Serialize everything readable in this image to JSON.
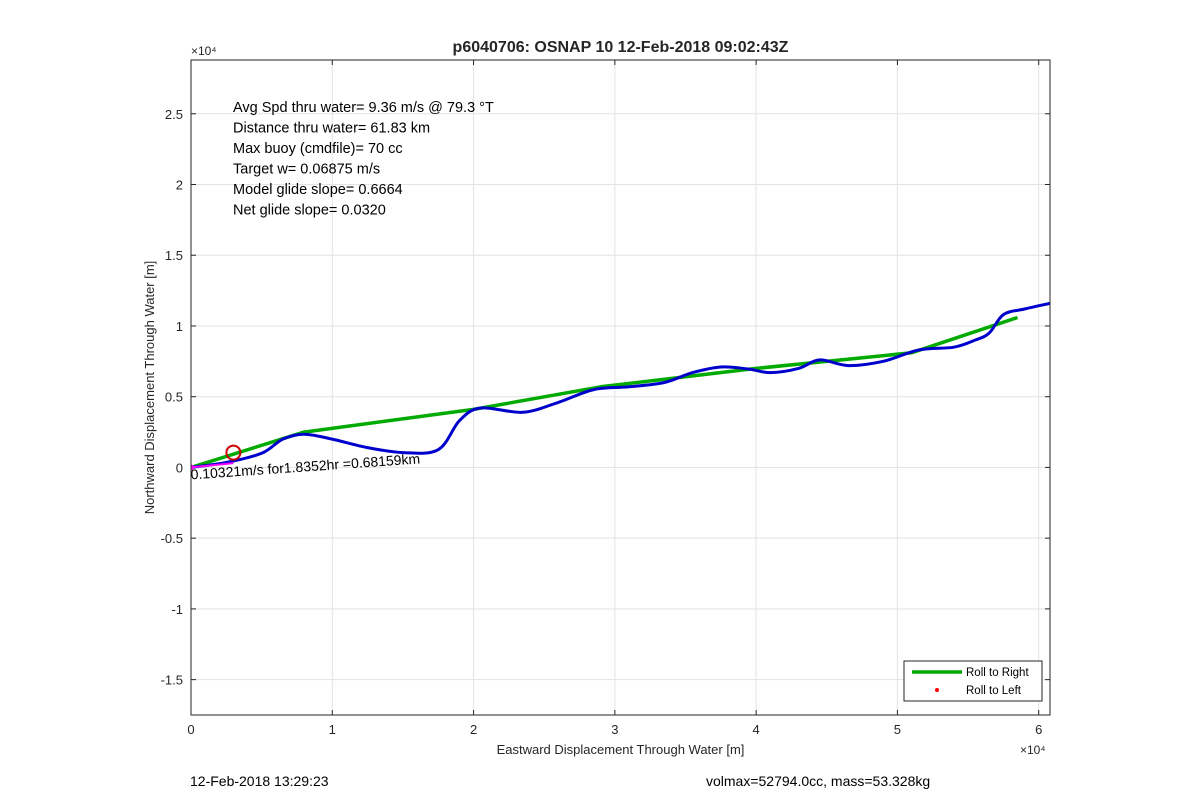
{
  "chart_data": {
    "type": "line",
    "title": "p6040706: OSNAP 10 12-Feb-2018 09:02:43Z",
    "xlabel": "Eastward Displacement Through Water [m]",
    "ylabel": "Northward Displacement Through Water [m]",
    "xlim": [
      0,
      60800
    ],
    "ylim": [
      -17500,
      28800
    ],
    "x_exponent_label": "×10⁴",
    "y_exponent_label": "×10⁴",
    "xticks": [
      0,
      10000,
      20000,
      30000,
      40000,
      50000,
      60000
    ],
    "xtick_labels": [
      "0",
      "1",
      "2",
      "3",
      "4",
      "5",
      "6"
    ],
    "yticks": [
      -15000,
      -10000,
      -5000,
      0,
      5000,
      10000,
      15000,
      20000,
      25000
    ],
    "ytick_labels": [
      "-1.5",
      "-1",
      "-0.5",
      "0",
      "0.5",
      "1",
      "1.5",
      "2",
      "2.5"
    ],
    "grid": true,
    "legend_position": "bottom-right",
    "legend": [
      {
        "label": "Roll to Right",
        "color": "#00aa00",
        "style": "line"
      },
      {
        "label": "Roll to Left",
        "color": "#ff0000",
        "style": "dot"
      }
    ],
    "annotations": [
      "Avg Spd thru water=  9.36 m/s @  79.3 °T",
      "Distance thru water= 61.83 km",
      "Max buoy (cmdfile)= 70 cc",
      "Target w= 0.06875 m/s",
      "Model glide slope= 0.6664",
      "Net glide slope= 0.0320"
    ],
    "current_label": "0.10321m/s for1.8352hr =0.68159km",
    "series": [
      {
        "name": "Roll to Right",
        "color": "#00aa00",
        "x": [
          0,
          8000,
          20000,
          29000,
          40000,
          51000,
          58500
        ],
        "y": [
          0,
          2500,
          4100,
          5700,
          7000,
          8100,
          10600
        ]
      },
      {
        "color": "#0000cc",
        "x": [
          0,
          2500,
          5000,
          6500,
          8000,
          10000,
          12500,
          15000,
          17500,
          19000,
          20500,
          23500,
          26000,
          28500,
          31000,
          33500,
          35500,
          37500,
          39500,
          41000,
          43000,
          44500,
          46500,
          49000,
          51500,
          54000,
          55500,
          56500,
          57500,
          59000,
          60800
        ],
        "y": [
          0,
          350,
          1000,
          2000,
          2350,
          2000,
          1400,
          1050,
          1250,
          3300,
          4200,
          3900,
          4600,
          5500,
          5700,
          6000,
          6700,
          7100,
          6950,
          6700,
          7000,
          7600,
          7200,
          7500,
          8300,
          8500,
          9000,
          9500,
          10800,
          11200,
          11600
        ]
      }
    ],
    "current_vector": {
      "color": "#ff00ff",
      "x": [
        0,
        3000
      ],
      "y": [
        0,
        300
      ]
    },
    "circle_marker": {
      "color": "#cc0000",
      "x": 3000,
      "y": 1050
    }
  },
  "footer": {
    "left": "12-Feb-2018 13:29:23",
    "right": "volmax=52794.0cc, mass=53.328kg"
  }
}
